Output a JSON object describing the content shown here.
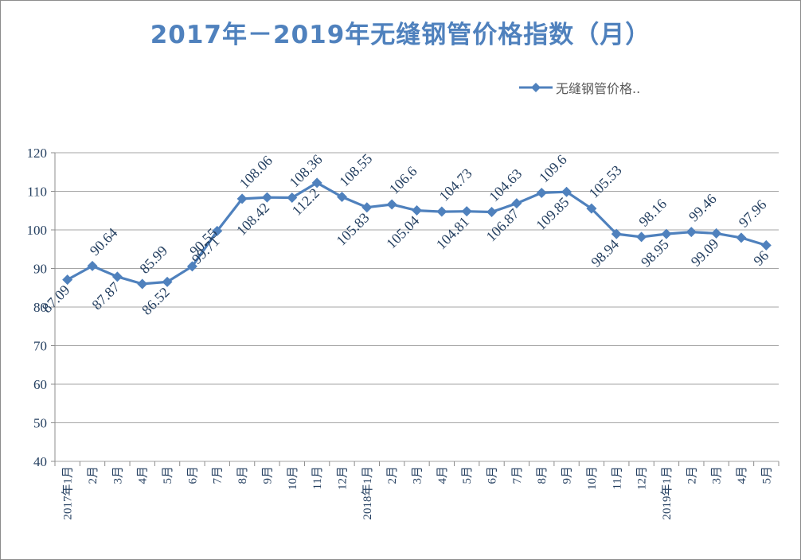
{
  "title": "2017年－2019年无缝钢管价格指数（月）",
  "legend": {
    "label": "无缝钢管价格.."
  },
  "colors": {
    "series": "#4f81bd",
    "grid": "#a6a6a6",
    "text": "#243f60",
    "title": "#4f81bd"
  },
  "chart_data": {
    "type": "line",
    "title": "2017年－2019年无缝钢管价格指数（月）",
    "xlabel": "",
    "ylabel": "",
    "ylim": [
      40,
      120
    ],
    "yticks": [
      40,
      50,
      60,
      70,
      80,
      90,
      100,
      110,
      120
    ],
    "grid": "horizontal",
    "legend_position": "top-right",
    "categories": [
      "2017年1月",
      "2月",
      "3月",
      "4月",
      "5月",
      "6月",
      "7月",
      "8月",
      "9月",
      "10月",
      "11月",
      "12月",
      "2018年1月",
      "2月",
      "3月",
      "4月",
      "5月",
      "6月",
      "7月",
      "8月",
      "9月",
      "10月",
      "11月",
      "12月",
      "2019年1月",
      "2月",
      "3月",
      "4月",
      "5月"
    ],
    "series": [
      {
        "name": "无缝钢管价格..",
        "marker": "diamond",
        "values": [
          87.09,
          90.64,
          87.87,
          85.99,
          86.52,
          90.55,
          99.71,
          108.06,
          108.42,
          108.36,
          112.2,
          108.55,
          105.83,
          106.6,
          105.04,
          104.73,
          104.81,
          104.63,
          106.87,
          109.6,
          109.85,
          105.53,
          98.94,
          98.16,
          98.95,
          99.46,
          99.09,
          97.96,
          96
        ],
        "data_labels": [
          "87.09",
          "90.64",
          "87.87",
          "85.99",
          "86.52",
          "90.55",
          "99.71",
          "108.06",
          "108.42",
          "108.36",
          "112.2",
          "108.55",
          "105.83",
          "106.6",
          "105.04",
          "104.73",
          "104.81",
          "104.63",
          "106.87",
          "109.6",
          "109.85",
          "105.53",
          "98.94",
          "98.16",
          "98.95",
          "99.46",
          "99.09",
          "97.96",
          "96"
        ]
      }
    ]
  }
}
